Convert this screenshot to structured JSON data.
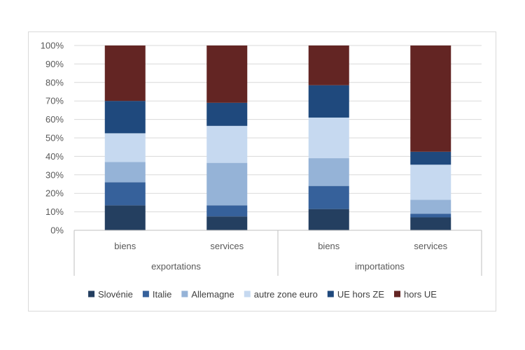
{
  "chart_data": {
    "type": "bar",
    "stacked": true,
    "percent": true,
    "groups": [
      {
        "label": "exportations",
        "categories": [
          "biens",
          "services"
        ]
      },
      {
        "label": "importations",
        "categories": [
          "biens",
          "services"
        ]
      }
    ],
    "categories": [
      "biens",
      "services",
      "biens",
      "services"
    ],
    "series": [
      {
        "name": "Slovénie",
        "color": "#243f60",
        "values": [
          13.5,
          7.5,
          11.5,
          7.0
        ]
      },
      {
        "name": "Italie",
        "color": "#36619b",
        "values": [
          12.5,
          6.0,
          12.5,
          2.0
        ]
      },
      {
        "name": "Allemagne",
        "color": "#95b3d7",
        "values": [
          11.0,
          23.0,
          15.0,
          7.5
        ]
      },
      {
        "name": "autre zone euro",
        "color": "#c6d9f0",
        "values": [
          15.5,
          20.0,
          22.0,
          19.0
        ]
      },
      {
        "name": "UE hors ZE",
        "color": "#1f497d",
        "values": [
          17.5,
          12.5,
          17.5,
          7.0
        ]
      },
      {
        "name": "hors UE",
        "color": "#632523",
        "values": [
          30.0,
          31.0,
          21.5,
          57.5
        ]
      }
    ],
    "ylim": [
      0,
      100
    ],
    "yticks": [
      "0%",
      "10%",
      "20%",
      "30%",
      "40%",
      "50%",
      "60%",
      "70%",
      "80%",
      "90%",
      "100%"
    ],
    "grid": true,
    "legend_position": "bottom"
  }
}
